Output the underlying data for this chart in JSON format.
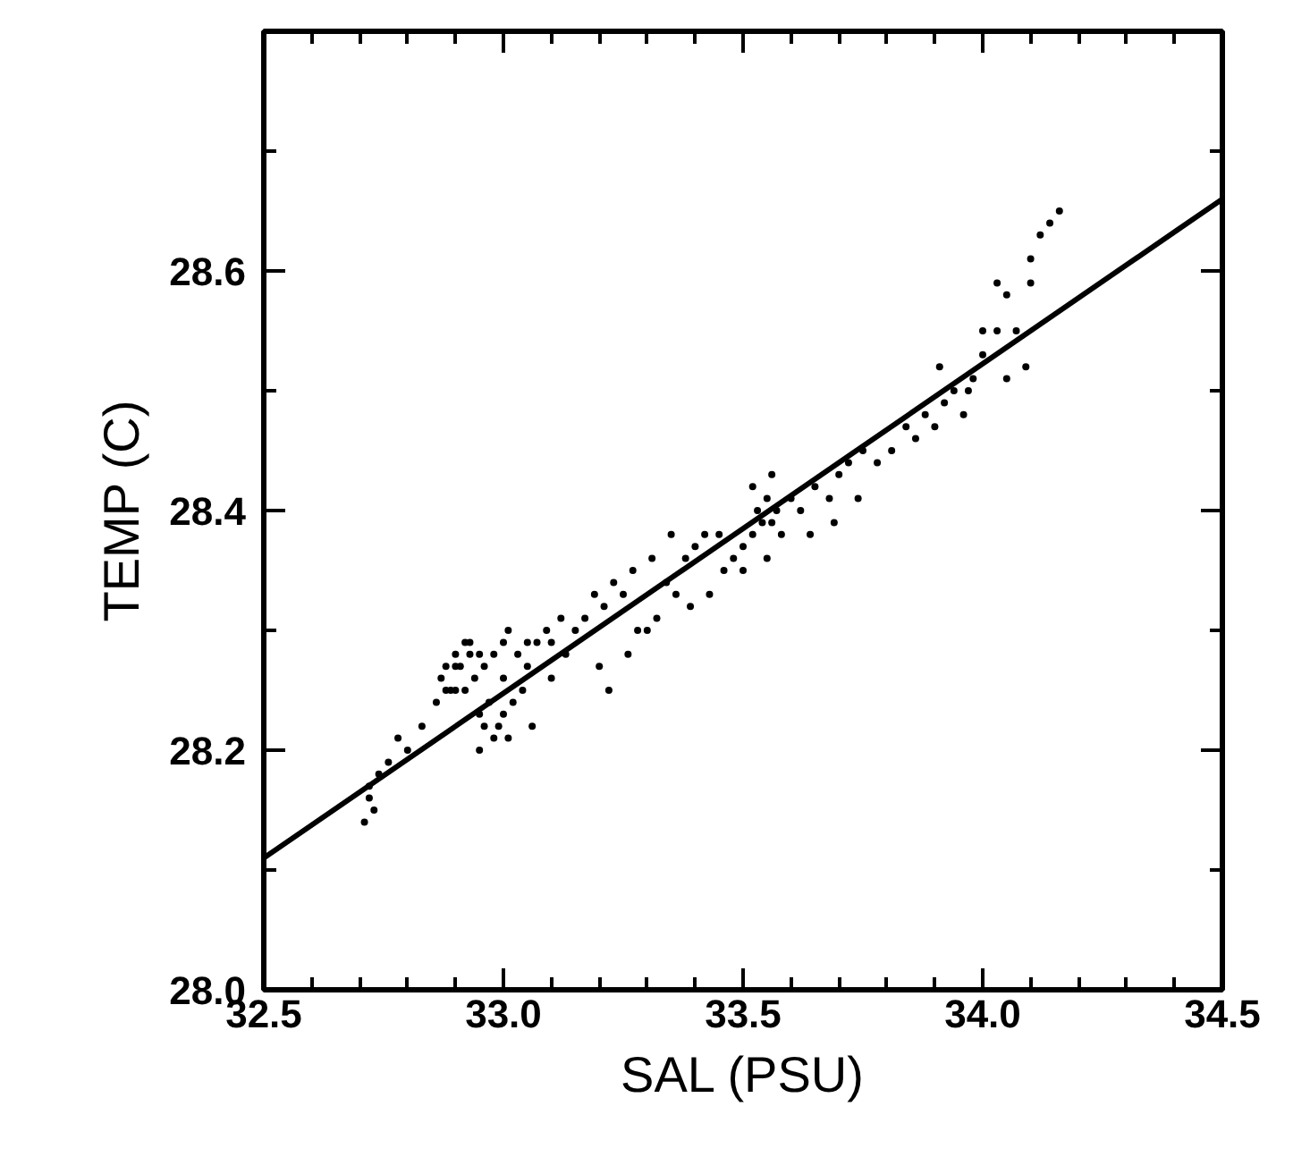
{
  "chart_data": {
    "type": "scatter",
    "xlabel": "SAL (PSU)",
    "ylabel": "TEMP (C)",
    "xlim": [
      32.5,
      34.5
    ],
    "ylim": [
      28.0,
      28.8
    ],
    "xticks": [
      32.5,
      {
        "value": 32.6,
        "label": null
      },
      {
        "value": 32.7,
        "label": null
      },
      {
        "value": 32.8,
        "label": null
      },
      {
        "value": 32.9,
        "label": null
      },
      {
        "value": 33.0,
        "label": "33.0"
      },
      {
        "value": 33.1,
        "label": null
      },
      {
        "value": 33.2,
        "label": null
      },
      {
        "value": 33.3,
        "label": null
      },
      {
        "value": 33.4,
        "label": null
      },
      33.5,
      {
        "value": 33.6,
        "label": null
      },
      {
        "value": 33.7,
        "label": null
      },
      {
        "value": 33.8,
        "label": null
      },
      {
        "value": 33.9,
        "label": null
      },
      {
        "value": 34.0,
        "label": "34.0"
      },
      {
        "value": 34.1,
        "label": null
      },
      {
        "value": 34.2,
        "label": null
      },
      {
        "value": 34.3,
        "label": null
      },
      {
        "value": 34.4,
        "label": null
      },
      34.5
    ],
    "yticks": [
      {
        "value": 28.0,
        "label": "28.0"
      },
      {
        "value": 28.1,
        "label": null
      },
      28.2,
      {
        "value": 28.3,
        "label": null
      },
      28.4,
      {
        "value": 28.5,
        "label": null
      },
      28.6,
      {
        "value": 28.7,
        "label": null
      }
    ],
    "grid": false,
    "series": [
      {
        "color": "#000000",
        "marker": "circle",
        "x": [
          32.71,
          32.72,
          32.73,
          32.72,
          32.74,
          32.76,
          32.78,
          32.8,
          32.83,
          32.86,
          32.88,
          32.9,
          32.92,
          32.93,
          32.95,
          32.96,
          32.98,
          33.0,
          33.01,
          33.03,
          33.05,
          33.07,
          33.09,
          33.1,
          33.12,
          32.87,
          32.88,
          32.89,
          32.9,
          32.91,
          32.92,
          32.93,
          32.94,
          32.95,
          32.96,
          32.97,
          32.98,
          32.99,
          33.0,
          33.01,
          33.02,
          33.04,
          33.06,
          32.9,
          32.95,
          33.0,
          33.05,
          33.1,
          33.13,
          33.15,
          33.17,
          33.19,
          33.21,
          33.23,
          33.25,
          33.27,
          33.2,
          33.22,
          33.26,
          33.3,
          33.32,
          33.34,
          33.36,
          33.38,
          33.4,
          33.42,
          33.28,
          33.31,
          33.35,
          33.39,
          33.43,
          33.46,
          33.48,
          33.5,
          33.52,
          33.53,
          33.54,
          33.55,
          33.56,
          33.57,
          33.58,
          33.6,
          33.45,
          33.5,
          33.55,
          33.52,
          33.56,
          33.62,
          33.65,
          33.68,
          33.7,
          33.72,
          33.75,
          33.78,
          33.64,
          33.69,
          33.74,
          33.81,
          33.84,
          33.86,
          33.88,
          33.9,
          33.92,
          33.94,
          33.96,
          33.98,
          33.91,
          33.97,
          34.0,
          34.0,
          34.03,
          34.03,
          34.05,
          34.07,
          34.05,
          34.09,
          34.1,
          34.1,
          34.12,
          34.14,
          34.16
        ],
        "values": [
          28.14,
          28.16,
          28.15,
          28.17,
          28.18,
          28.19,
          28.21,
          28.2,
          28.22,
          28.24,
          28.25,
          28.27,
          28.25,
          28.29,
          28.28,
          28.27,
          28.28,
          28.29,
          28.3,
          28.28,
          28.29,
          28.29,
          28.3,
          28.29,
          28.31,
          28.26,
          28.27,
          28.25,
          28.28,
          28.27,
          28.29,
          28.28,
          28.26,
          28.23,
          28.22,
          28.24,
          28.21,
          28.22,
          28.23,
          28.21,
          28.24,
          28.25,
          28.22,
          28.25,
          28.2,
          28.26,
          28.27,
          28.26,
          28.28,
          28.3,
          28.31,
          28.33,
          28.32,
          28.34,
          28.33,
          28.35,
          28.27,
          28.25,
          28.28,
          28.3,
          28.31,
          28.34,
          28.33,
          28.36,
          28.37,
          28.38,
          28.3,
          28.36,
          28.38,
          28.32,
          28.33,
          28.35,
          28.36,
          28.37,
          28.38,
          28.4,
          28.39,
          28.41,
          28.39,
          28.4,
          28.38,
          28.41,
          28.38,
          28.35,
          28.36,
          28.42,
          28.43,
          28.4,
          28.42,
          28.41,
          28.43,
          28.44,
          28.45,
          28.44,
          28.38,
          28.39,
          28.41,
          28.45,
          28.47,
          28.46,
          28.48,
          28.47,
          28.49,
          28.5,
          28.48,
          28.51,
          28.52,
          28.5,
          28.53,
          28.55,
          28.55,
          28.59,
          28.51,
          28.55,
          28.58,
          28.52,
          28.59,
          28.61,
          28.63,
          28.64,
          28.65
        ]
      },
      {
        "type": "line",
        "color": "#000000",
        "line_style": "solid",
        "x": [
          32.5,
          34.5
        ],
        "values": [
          28.11,
          28.66
        ]
      }
    ]
  }
}
